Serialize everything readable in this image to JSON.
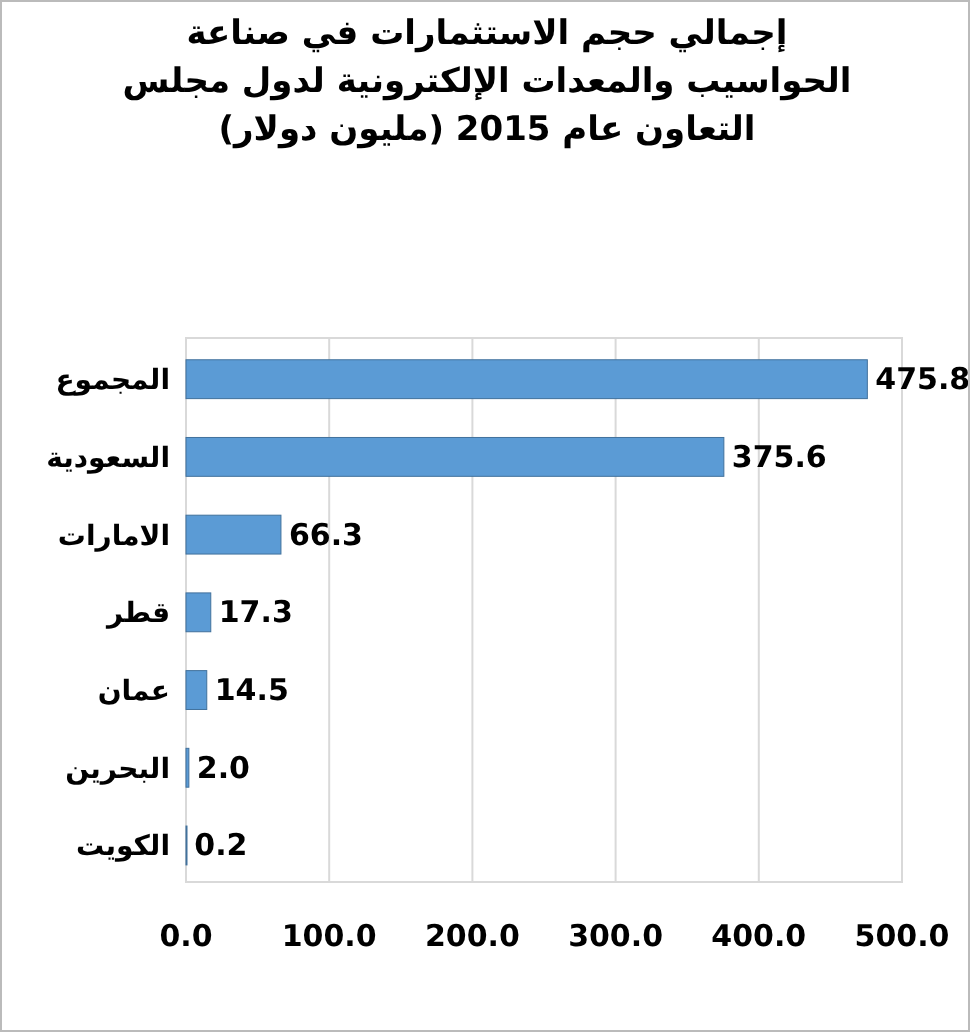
{
  "chart_data": {
    "type": "bar",
    "orientation": "horizontal",
    "title": "إجمالي حجم الاستثمارات في صناعة الحواسيب والمعدات الإلكترونية لدول مجلس التعاون عام 2015 (مليون دولار)",
    "categories": [
      "المجموع",
      "السعودية",
      "الامارات",
      "قطر",
      "عمان",
      "البحرين",
      "الكويت"
    ],
    "values": [
      475.8,
      375.6,
      66.3,
      17.3,
      14.5,
      2.0,
      0.2
    ],
    "value_labels": [
      "475.8",
      "375.6",
      "66.3",
      "17.3",
      "14.5",
      "2.0",
      "0.2"
    ],
    "color": "#5b9bd5",
    "xlim": [
      0,
      500
    ],
    "xticks": [
      {
        "value": 0,
        "label": "0.0"
      },
      {
        "value": 100,
        "label": "100.0"
      },
      {
        "value": 200,
        "label": "200.0"
      },
      {
        "value": 300,
        "label": "300.0"
      },
      {
        "value": 400,
        "label": "400.0"
      },
      {
        "value": 500,
        "label": "500.0"
      }
    ],
    "grid": "x"
  }
}
